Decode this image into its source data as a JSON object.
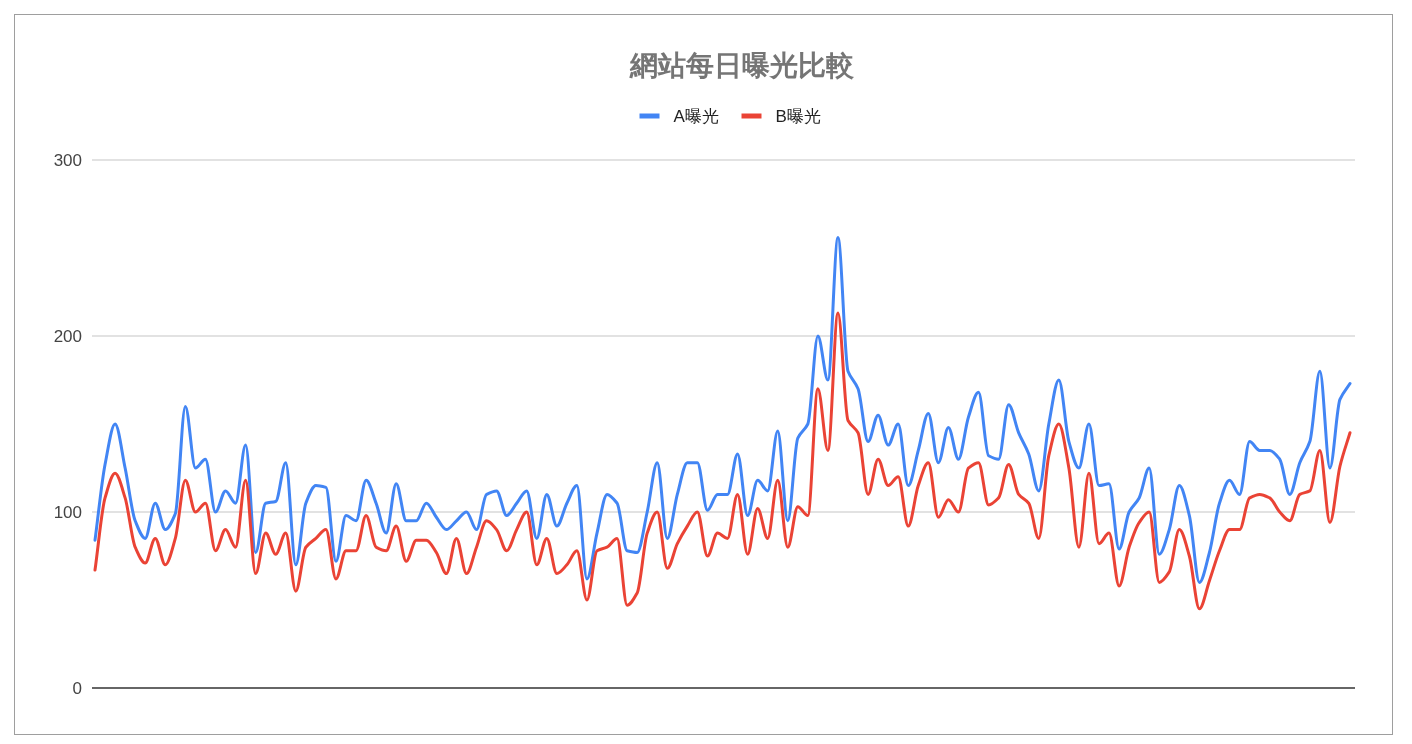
{
  "chart_data": {
    "type": "line",
    "title": "網站每日曝光比較",
    "categories": [
      null,
      null,
      null,
      null,
      null,
      null,
      null,
      null,
      null,
      null,
      null,
      null,
      null,
      null,
      null,
      null,
      null,
      null,
      null,
      null,
      null,
      null,
      null,
      null,
      null,
      null,
      null,
      null,
      null,
      null,
      null,
      null,
      null,
      null,
      null,
      null,
      null,
      null,
      null,
      null,
      null,
      null,
      null,
      null,
      null,
      null,
      null,
      null,
      null,
      null,
      null,
      null,
      null,
      null,
      null,
      null,
      null,
      null,
      null,
      null,
      null,
      null,
      null,
      null,
      null,
      null,
      null,
      null,
      null,
      null,
      null,
      null,
      null,
      null,
      null,
      null,
      null,
      null,
      null,
      null,
      null,
      null,
      null,
      null,
      null,
      null,
      null,
      null,
      null,
      null,
      null,
      null,
      null,
      null,
      null,
      null,
      null,
      null,
      null,
      null,
      null,
      null,
      null,
      null,
      null,
      null,
      null,
      null,
      null,
      null,
      null,
      null,
      null,
      null,
      null,
      null,
      null,
      null,
      null,
      null,
      null,
      null,
      null,
      null,
      null,
      null
    ],
    "series": [
      {
        "name": "A曝光",
        "color": "#4285f4",
        "values": [
          84,
          127,
          150,
          125,
          95,
          85,
          105,
          90,
          99,
          160,
          125,
          130,
          100,
          112,
          105,
          138,
          77,
          105,
          106,
          128,
          70,
          105,
          115,
          114,
          72,
          98,
          95,
          118,
          105,
          88,
          116,
          95,
          95,
          105,
          97,
          90,
          95,
          100,
          90,
          110,
          112,
          98,
          105,
          112,
          85,
          110,
          92,
          105,
          115,
          62,
          88,
          110,
          105,
          78,
          77,
          100,
          128,
          85,
          110,
          128,
          128,
          101,
          110,
          110,
          133,
          98,
          118,
          112,
          146,
          95,
          142,
          150,
          200,
          175,
          256,
          180,
          170,
          140,
          155,
          138,
          150,
          115,
          135,
          156,
          128,
          148,
          130,
          154,
          168,
          132,
          130,
          161,
          145,
          133,
          112,
          150,
          175,
          140,
          125,
          150,
          115,
          116,
          79,
          100,
          108,
          125,
          76,
          90,
          115,
          98,
          60,
          77,
          105,
          118,
          110,
          140,
          135,
          135,
          130,
          110,
          128,
          140,
          180,
          125,
          164,
          173
        ]
      },
      {
        "name": "B曝光",
        "color": "#ea4335",
        "values": [
          67,
          108,
          122,
          108,
          80,
          71,
          85,
          70,
          85,
          118,
          100,
          105,
          78,
          90,
          80,
          118,
          65,
          88,
          76,
          88,
          55,
          80,
          85,
          90,
          62,
          78,
          78,
          98,
          80,
          78,
          92,
          72,
          84,
          84,
          77,
          65,
          85,
          65,
          80,
          95,
          90,
          78,
          90,
          100,
          70,
          85,
          65,
          70,
          78,
          50,
          78,
          80,
          85,
          47,
          54,
          88,
          100,
          68,
          82,
          92,
          100,
          75,
          88,
          85,
          110,
          76,
          102,
          85,
          118,
          80,
          103,
          98,
          170,
          135,
          213,
          152,
          145,
          110,
          130,
          115,
          120,
          92,
          115,
          128,
          97,
          107,
          100,
          125,
          128,
          104,
          108,
          127,
          110,
          105,
          85,
          132,
          150,
          125,
          80,
          122,
          82,
          88,
          58,
          80,
          94,
          100,
          60,
          66,
          90,
          75,
          45,
          61,
          78,
          90,
          90,
          108,
          110,
          108,
          100,
          95,
          110,
          112,
          135,
          94,
          126,
          145
        ]
      }
    ],
    "ylim": [
      0,
      300
    ],
    "yticks": [
      0,
      100,
      200,
      300
    ],
    "grid": "y",
    "legend": "top",
    "line_style": "solid"
  }
}
